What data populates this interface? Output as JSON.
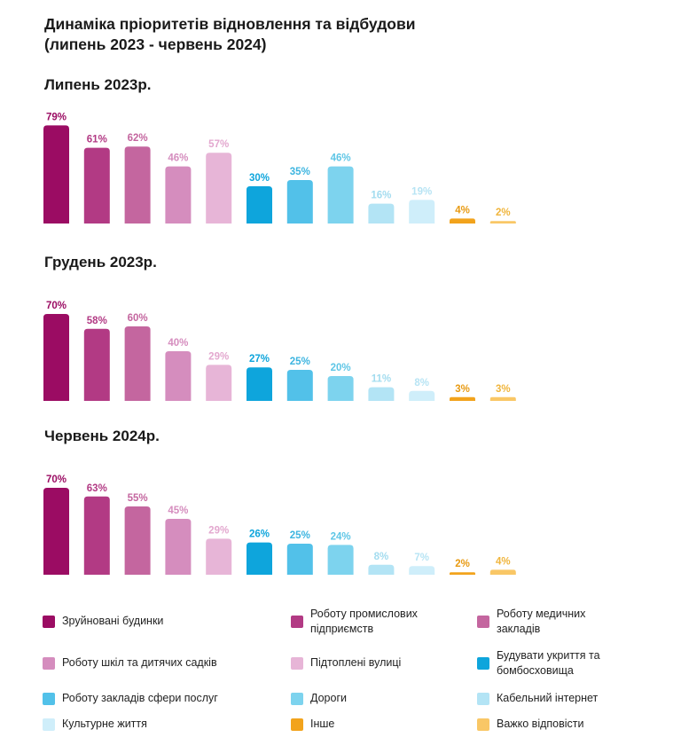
{
  "title_line1": "Динаміка пріоритетів відновлення та відбудови",
  "title_line2": "(липень 2023 - червень 2024)",
  "chart_data": {
    "type": "bar",
    "series_names": [
      "Зруйновані будинки",
      "Роботу промислових підприємств",
      "Роботу медичних закладів",
      "Роботу шкіл та дитячих садків",
      "Підтоплені вулиці",
      "Будувати укриття та бомбосховища",
      "Роботу закладів сфери послуг",
      "Дороги",
      "Кабельний інтернет",
      "Культурне життя",
      "Інше",
      "Важко відповісти"
    ],
    "colors": [
      "#9b0c63",
      "#b23a84",
      "#c4669f",
      "#d58dbe",
      "#e7b5d7",
      "#0ea5dc",
      "#52c1e9",
      "#7dd3ee",
      "#b3e4f5",
      "#cfeefa",
      "#f2a31c",
      "#f9c766"
    ],
    "label_colors": [
      "#9b0c63",
      "#b23a84",
      "#c4669f",
      "#d58dbe",
      "#e3a8cf",
      "#0ea5dc",
      "#3db5e0",
      "#5ec6e6",
      "#a3dcef",
      "#b7e4f4",
      "#e89a12",
      "#f0b53c"
    ],
    "unit": "%",
    "ylim": [
      0,
      100
    ],
    "panels": [
      {
        "title": "Липень 2023р.",
        "values": [
          79,
          61,
          62,
          46,
          57,
          30,
          35,
          46,
          16,
          19,
          4,
          2
        ]
      },
      {
        "title": "Грудень 2023р.",
        "values": [
          70,
          58,
          60,
          40,
          29,
          27,
          25,
          20,
          11,
          8,
          3,
          3
        ]
      },
      {
        "title": "Червень 2024р.",
        "values": [
          70,
          63,
          55,
          45,
          29,
          26,
          25,
          24,
          8,
          7,
          2,
          4
        ]
      }
    ]
  },
  "legend": {
    "items": [
      {
        "label_lines": [
          "Зруйновані будинки"
        ],
        "color": "#9b0c63"
      },
      {
        "label_lines": [
          "Роботу промислових",
          "підприємств"
        ],
        "color": "#b23a84"
      },
      {
        "label_lines": [
          "Роботу медичних",
          "закладів"
        ],
        "color": "#c4669f"
      },
      {
        "label_lines": [
          "Роботу шкіл та дитячих садків"
        ],
        "color": "#d58dbe"
      },
      {
        "label_lines": [
          "Підтоплені вулиці"
        ],
        "color": "#e7b5d7"
      },
      {
        "label_lines": [
          "Будувати укриття та",
          "бомбосховища"
        ],
        "color": "#0ea5dc"
      },
      {
        "label_lines": [
          "Роботу закладів сфери послуг"
        ],
        "color": "#52c1e9"
      },
      {
        "label_lines": [
          "Дороги"
        ],
        "color": "#7dd3ee"
      },
      {
        "label_lines": [
          "Кабельний інтернет"
        ],
        "color": "#b3e4f5"
      },
      {
        "label_lines": [
          "Культурне життя"
        ],
        "color": "#cfeefa"
      },
      {
        "label_lines": [
          "Інше"
        ],
        "color": "#f2a31c"
      },
      {
        "label_lines": [
          "Важко відповісти"
        ],
        "color": "#f9c766"
      }
    ]
  }
}
